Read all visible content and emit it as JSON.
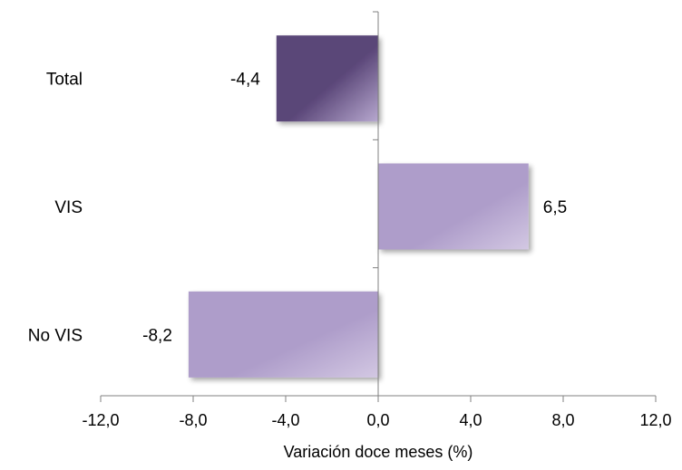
{
  "chart_data": {
    "type": "bar",
    "orientation": "horizontal",
    "categories": [
      "Total",
      "VIS",
      "No VIS"
    ],
    "values": [
      -4.4,
      6.5,
      -8.2
    ],
    "value_labels": [
      "-4,4",
      "6,5",
      "-8,2"
    ],
    "xlabel": "Variación doce meses (%)",
    "xlim": [
      -12.0,
      12.0
    ],
    "xticks": [
      -12.0,
      -8.0,
      -4.0,
      0.0,
      4.0,
      8.0,
      12.0
    ],
    "xtick_labels": [
      "-12,0",
      "-8,0",
      "-4,0",
      "0,0",
      "4,0",
      "8,0",
      "12,0"
    ],
    "grid": false,
    "legend": "none",
    "colors": {
      "total_dark": "#5a4678",
      "total_light": "#b7a8cf",
      "bar_main": "#ae9dca",
      "bar_light": "#d3c8e3",
      "axis": "#808080"
    }
  }
}
